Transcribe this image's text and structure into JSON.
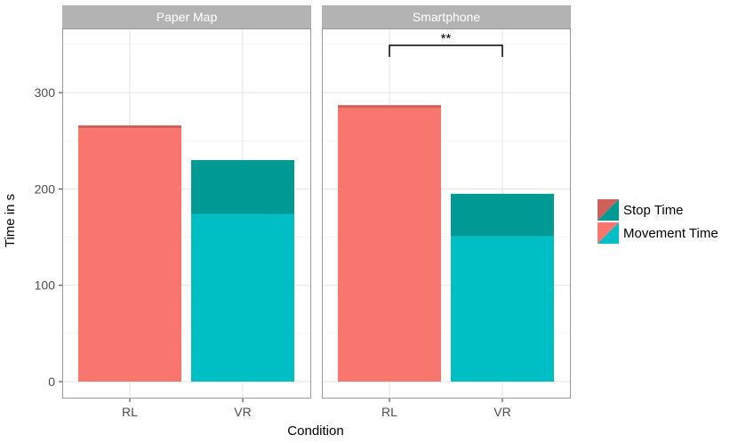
{
  "chart_data": {
    "type": "bar",
    "stacked": true,
    "facets": [
      "Paper Map",
      "Smartphone"
    ],
    "categories": [
      "RL",
      "VR"
    ],
    "ylabel": "Time in s",
    "xlabel": "Condition",
    "ylim": [
      0,
      355
    ],
    "yticks": [
      0,
      100,
      200,
      300
    ],
    "grid": true,
    "legend_position": "right",
    "series": [
      {
        "name": "Movement Time",
        "values": {
          "Paper Map": [
            263,
            174
          ],
          "Smartphone": [
            284,
            151
          ]
        }
      },
      {
        "name": "Stop Time",
        "values": {
          "Paper Map": [
            3,
            56
          ],
          "Smartphone": [
            3,
            44
          ]
        }
      }
    ],
    "colors": {
      "Movement Time": {
        "RL": "#F8766D",
        "VR": "#00BFC4"
      },
      "Stop Time": {
        "RL": "#D0605A",
        "VR": "#009A94"
      }
    },
    "annotations": [
      {
        "facet": "Smartphone",
        "from": "RL",
        "to": "VR",
        "label": "**"
      }
    ]
  }
}
